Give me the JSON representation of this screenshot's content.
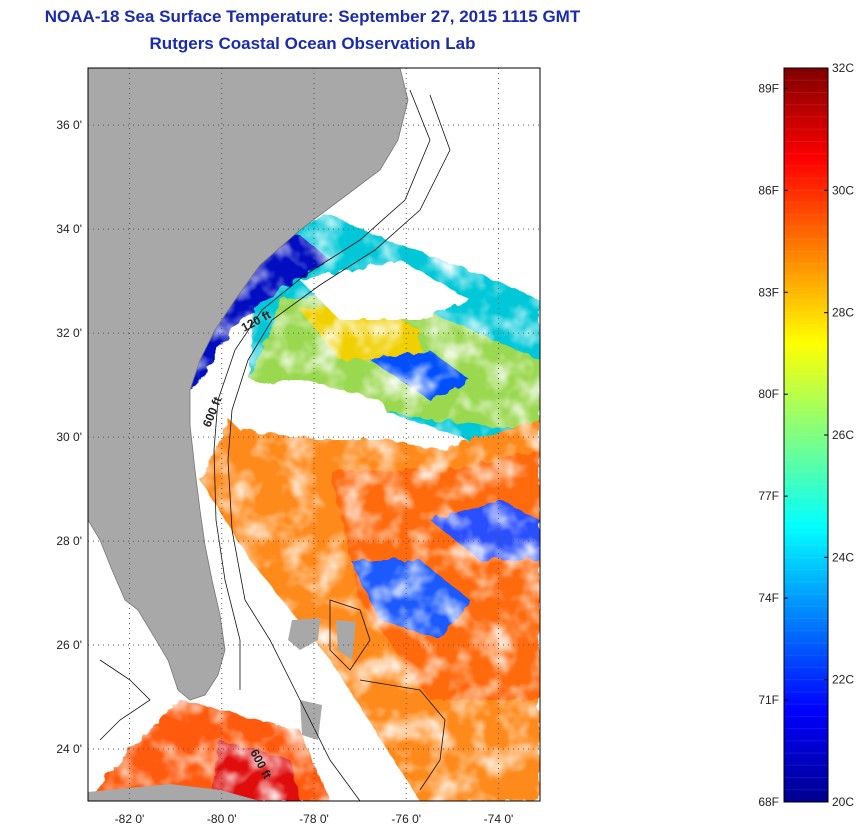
{
  "title": "NOAA-18 Sea Surface Temperature:  September 27, 2015 1115 GMT",
  "subtitle": "Rutgers Coastal Ocean Observation Lab",
  "map": {
    "lat_ticks": [
      {
        "value": 24,
        "label": "24 0'"
      },
      {
        "value": 26,
        "label": "26 0'"
      },
      {
        "value": 28,
        "label": "28 0'"
      },
      {
        "value": 30,
        "label": "30 0'"
      },
      {
        "value": 32,
        "label": "32 0'"
      },
      {
        "value": 34,
        "label": "34 0'"
      },
      {
        "value": 36,
        "label": "36 0'"
      }
    ],
    "lon_ticks": [
      {
        "value": -82,
        "label": "-82 0'"
      },
      {
        "value": -80,
        "label": "-80 0'"
      },
      {
        "value": -78,
        "label": "-78 0'"
      },
      {
        "value": -76,
        "label": "-76 0'"
      },
      {
        "value": -74,
        "label": "-74 0'"
      }
    ],
    "lon_range": [
      -82.9,
      -73.1
    ],
    "lat_range": [
      23.0,
      37.1
    ],
    "contour_labels": [
      "120 ft",
      "600 ft",
      "600 ft"
    ],
    "land_color": "#a8a8a8",
    "grid": "dotted"
  },
  "colorbar": {
    "range_c": [
      20,
      32
    ],
    "c_labels": [
      {
        "value": 32,
        "label": "32C"
      },
      {
        "value": 30,
        "label": "30C"
      },
      {
        "value": 28,
        "label": "28C"
      },
      {
        "value": 26,
        "label": "26C"
      },
      {
        "value": 24,
        "label": "24C"
      },
      {
        "value": 22,
        "label": "22C"
      },
      {
        "value": 20,
        "label": "20C"
      }
    ],
    "f_labels": [
      {
        "value": 89,
        "label": "89F"
      },
      {
        "value": 86,
        "label": "86F"
      },
      {
        "value": 83,
        "label": "83F"
      },
      {
        "value": 80,
        "label": "80F"
      },
      {
        "value": 77,
        "label": "77F"
      },
      {
        "value": 74,
        "label": "74F"
      },
      {
        "value": 71,
        "label": "71F"
      },
      {
        "value": 68,
        "label": "68F"
      }
    ],
    "colors": [
      "#00008f",
      "#0000ff",
      "#0080ff",
      "#00ffff",
      "#80ff80",
      "#ffff00",
      "#ff8000",
      "#ff0000",
      "#800000"
    ]
  }
}
